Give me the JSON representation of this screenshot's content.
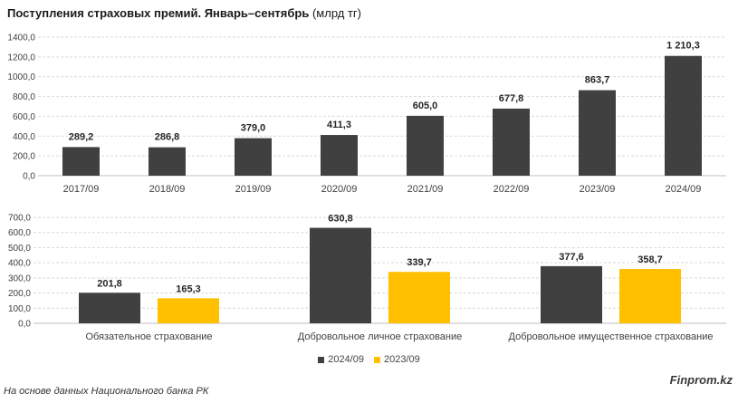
{
  "header": {
    "title_bold": "Поступления страховых премий. Январь–сентябрь",
    "title_unit": "(млрд тг)"
  },
  "colors": {
    "dark": "#404040",
    "accent": "#FFC000",
    "grid": "#d9d9d9"
  },
  "chart_data": [
    {
      "type": "bar",
      "categories": [
        "2017/09",
        "2018/09",
        "2019/09",
        "2020/09",
        "2021/09",
        "2022/09",
        "2023/09",
        "2024/09"
      ],
      "series": [
        {
          "values": [
            289.2,
            286.8,
            379.0,
            411.3,
            605.0,
            677.8,
            863.7,
            1210.3
          ],
          "labels": [
            "289,2",
            "286,8",
            "379,0",
            "411,3",
            "605,0",
            "677,8",
            "863,7",
            "1 210,3"
          ]
        }
      ],
      "ylim": [
        0,
        1400
      ],
      "yticks": [
        "0,0",
        "200,0",
        "400,0",
        "600,0",
        "800,0",
        "1000,0",
        "1200,0",
        "1400,0"
      ],
      "grid": true
    },
    {
      "type": "bar",
      "categories": [
        "Обязательное страхование",
        "Добровольное личное страхование",
        "Добровольное имущественное страхование"
      ],
      "series": [
        {
          "name": "2024/09",
          "values": [
            201.8,
            630.8,
            377.6
          ],
          "labels": [
            "201,8",
            "630,8",
            "377,6"
          ]
        },
        {
          "name": "2023/09",
          "values": [
            165.3,
            339.7,
            358.7
          ],
          "labels": [
            "165,3",
            "339,7",
            "358,7"
          ]
        }
      ],
      "ylim": [
        0,
        700
      ],
      "yticks": [
        "0,0",
        "100,0",
        "200,0",
        "300,0",
        "400,0",
        "500,0",
        "600,0",
        "700,0"
      ],
      "grid": true,
      "legend": "bottom"
    }
  ],
  "footer": {
    "brand": "Finprom.kz",
    "source": "На основе данных Национального банка РК"
  }
}
